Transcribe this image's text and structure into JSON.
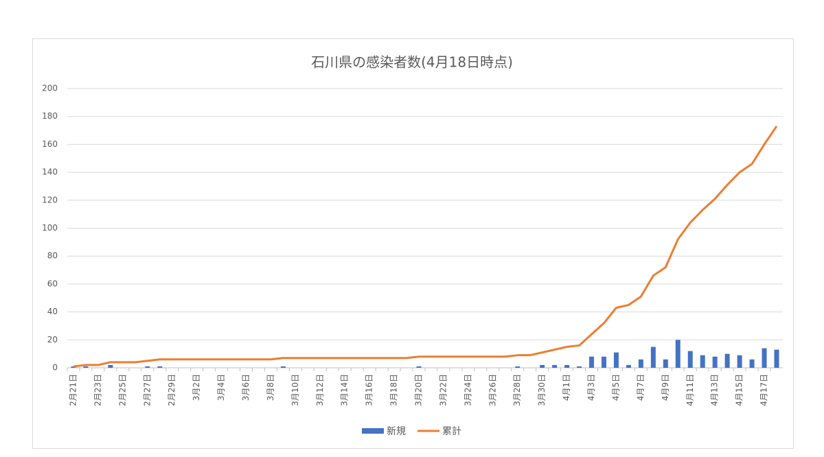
{
  "chart_data": {
    "type": "bar-line",
    "title": "石川県の感染者数(4月18日時点)",
    "categories": [
      "2月21日",
      null,
      "2月23日",
      null,
      "2月25日",
      null,
      "2月27日",
      null,
      "2月29日",
      null,
      "3月2日",
      null,
      "3月4日",
      null,
      "3月6日",
      null,
      "3月8日",
      null,
      "3月10日",
      null,
      "3月12日",
      null,
      "3月14日",
      null,
      "3月16日",
      null,
      "3月18日",
      null,
      "3月20日",
      null,
      "3月22日",
      null,
      "3月24日",
      null,
      "3月26日",
      null,
      "3月28日",
      null,
      "3月30日",
      null,
      "4月1日",
      null,
      "4月3日",
      null,
      "4月5日",
      null,
      "4月7日",
      null,
      "4月9日",
      null,
      "4月11日",
      null,
      "4月13日",
      null,
      "4月15日",
      null,
      "4月17日",
      null
    ],
    "series": [
      {
        "name": "新規",
        "type": "bar",
        "color": "#4472c4",
        "values": [
          1,
          1,
          0,
          2,
          0,
          0,
          1,
          1,
          0,
          0,
          0,
          0,
          0,
          0,
          0,
          0,
          0,
          1,
          0,
          0,
          0,
          0,
          0,
          0,
          0,
          0,
          0,
          0,
          1,
          0,
          0,
          0,
          0,
          0,
          0,
          0,
          1,
          0,
          2,
          2,
          2,
          1,
          8,
          8,
          11,
          2,
          6,
          15,
          6,
          20,
          12,
          9,
          8,
          10,
          9,
          6,
          14,
          13
        ]
      },
      {
        "name": "累計",
        "type": "line",
        "color": "#ed7d31",
        "values": [
          1,
          2,
          2,
          4,
          4,
          4,
          5,
          6,
          6,
          6,
          6,
          6,
          6,
          6,
          6,
          6,
          6,
          7,
          7,
          7,
          7,
          7,
          7,
          7,
          7,
          7,
          7,
          7,
          8,
          8,
          8,
          8,
          8,
          8,
          8,
          8,
          9,
          9,
          11,
          13,
          15,
          16,
          24,
          32,
          43,
          45,
          51,
          66,
          72,
          92,
          104,
          113,
          121,
          131,
          140,
          146,
          160,
          173
        ]
      }
    ],
    "ylim": [
      0,
      200
    ],
    "yticks": [
      0,
      20,
      40,
      60,
      80,
      100,
      120,
      140,
      160,
      180,
      200
    ],
    "grid": true,
    "legend": "bottom"
  }
}
